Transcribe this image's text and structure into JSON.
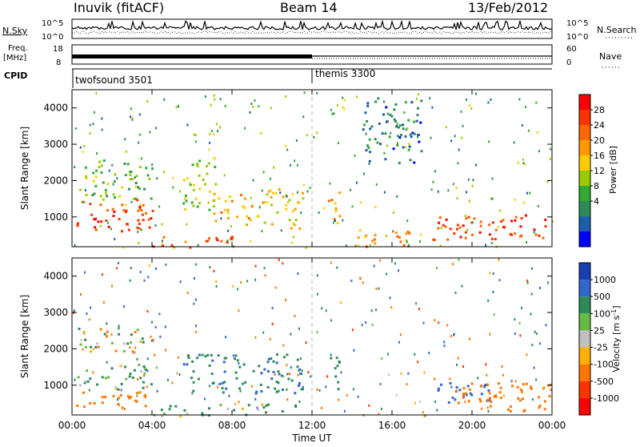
{
  "header": {
    "station": "Inuvik (fitACF)",
    "beam": "Beam 14",
    "date": "13/Feb/2012"
  },
  "noise_panel": {
    "left_label": "N.Sky",
    "right_label": "N.Search",
    "left_ticks": [
      "10^5",
      "10^0"
    ],
    "right_ticks": [
      "10^5",
      "10^0"
    ]
  },
  "freq_panel": {
    "left_label_line1": "Freq.",
    "left_label_line2": "[MHz]",
    "right_label": "Nave",
    "left_ticks": [
      "18",
      "8"
    ],
    "right_ticks": [
      "60",
      "0"
    ]
  },
  "cpid": {
    "label": "CPID",
    "segments": [
      {
        "name": "twofsound 3501",
        "start_hour": 0
      },
      {
        "name": "themis 3300",
        "start_hour": 12
      }
    ]
  },
  "x_axis": {
    "label": "Time UT",
    "ticks": [
      "00:00",
      "04:00",
      "08:00",
      "12:00",
      "16:00",
      "20:00",
      "00:00"
    ]
  },
  "chart_data": [
    {
      "type": "heatmap",
      "title": "",
      "xlabel": "Time UT",
      "ylabel": "Slant Range [km]",
      "xlim": [
        0,
        24
      ],
      "ylim": [
        180,
        4500
      ],
      "y_ticks": [
        1000,
        2000,
        3000,
        4000
      ],
      "colorbar": {
        "label": "Power [dB]",
        "ticks": [
          "28",
          "24",
          "20",
          "16",
          "12",
          "8",
          "4"
        ],
        "colors": [
          "#ff0000",
          "#ff3300",
          "#ff6600",
          "#ff9900",
          "#ffcc00",
          "#99cc00",
          "#33aa33",
          "#2e8b57",
          "#1a5faa",
          "#0000ff"
        ]
      },
      "regions": [
        {
          "t0": 0.2,
          "t1": 4.0,
          "r0": 550,
          "r1": 1500,
          "value": 28
        },
        {
          "t0": 0.2,
          "t1": 4.0,
          "r0": 1500,
          "r1": 2600,
          "value": 12
        },
        {
          "t0": 4.0,
          "t1": 8.0,
          "r0": 180,
          "r1": 550,
          "value": 26
        },
        {
          "t0": 5.5,
          "t1": 7.2,
          "r0": 1200,
          "r1": 2700,
          "value": 14
        },
        {
          "t0": 7.0,
          "t1": 9.0,
          "r0": 800,
          "r1": 1700,
          "value": 22
        },
        {
          "t0": 9.2,
          "t1": 11.5,
          "r0": 700,
          "r1": 1800,
          "value": 18
        },
        {
          "t0": 12.7,
          "t1": 13.4,
          "r0": 800,
          "r1": 1800,
          "value": 20
        },
        {
          "t0": 14.0,
          "t1": 17.0,
          "r0": 200,
          "r1": 700,
          "value": 22
        },
        {
          "t0": 18.0,
          "t1": 24.0,
          "r0": 400,
          "r1": 1100,
          "value": 28
        },
        {
          "t0": 14.5,
          "t1": 17.5,
          "r0": 2500,
          "r1": 4300,
          "value": 6
        }
      ]
    },
    {
      "type": "heatmap",
      "title": "",
      "xlabel": "Time UT",
      "ylabel": "Slant Range [km]",
      "xlim": [
        0,
        24
      ],
      "ylim": [
        180,
        4500
      ],
      "y_ticks": [
        1000,
        2000,
        3000,
        4000
      ],
      "colorbar": {
        "label": "Velocity [m s^-1]",
        "ticks": [
          "1000",
          "500",
          "100",
          "25",
          "-25",
          "-100",
          "-500",
          "-1000"
        ],
        "colors": [
          "#1a3fb0",
          "#3366cc",
          "#2e8b57",
          "#66bb44",
          "#c0c0c0",
          "#ffb000",
          "#ff7700",
          "#ff3300",
          "#ff0000"
        ]
      },
      "regions": [
        {
          "t0": 0.2,
          "t1": 4.0,
          "r0": 900,
          "r1": 1600,
          "value": 150
        },
        {
          "t0": 0.2,
          "t1": 4.0,
          "r0": 400,
          "r1": 900,
          "value": -300
        },
        {
          "t0": 0.2,
          "t1": 4.0,
          "r0": 1900,
          "r1": 2600,
          "value": 0
        },
        {
          "t0": 4.0,
          "t1": 11.5,
          "r0": 180,
          "r1": 500,
          "value": 100
        },
        {
          "t0": 5.5,
          "t1": 11.5,
          "r0": 800,
          "r1": 1900,
          "value": 400
        },
        {
          "t0": 12.7,
          "t1": 13.4,
          "r0": 800,
          "r1": 1800,
          "value": 300
        },
        {
          "t0": 18.0,
          "t1": 21.0,
          "r0": 500,
          "r1": 1100,
          "value": 800
        },
        {
          "t0": 19.0,
          "t1": 24.0,
          "r0": 300,
          "r1": 1100,
          "value": -300
        }
      ]
    }
  ]
}
